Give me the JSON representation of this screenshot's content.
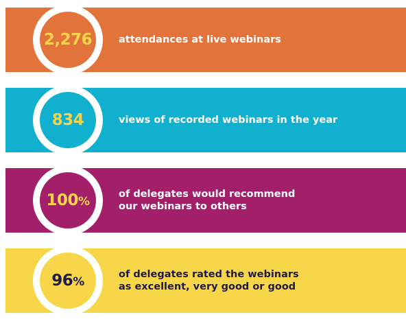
{
  "stats": [
    {
      "value": "2,276",
      "suffix": "",
      "lines": [
        "attendances at live webinars"
      ],
      "band_color": "#e2733a",
      "value_color": "#f5d34a",
      "text_color": "#ffffff"
    },
    {
      "value": "834",
      "suffix": "",
      "lines": [
        "views of recorded webinars in the year"
      ],
      "band_color": "#12b0cf",
      "value_color": "#f5d34a",
      "text_color": "#ffffff"
    },
    {
      "value": "100",
      "suffix": "%",
      "lines": [
        "of delegates would recommend",
        "our webinars to others"
      ],
      "band_color": "#a41f6a",
      "value_color": "#f5d34a",
      "text_color": "#ffffff"
    },
    {
      "value": "96",
      "suffix": "%",
      "lines": [
        "of delegates rated the webinars",
        "as excellent, very good or good"
      ],
      "band_color": "#f8d64a",
      "value_color": "#1e1a4a",
      "text_color": "#1e1a4a"
    }
  ]
}
